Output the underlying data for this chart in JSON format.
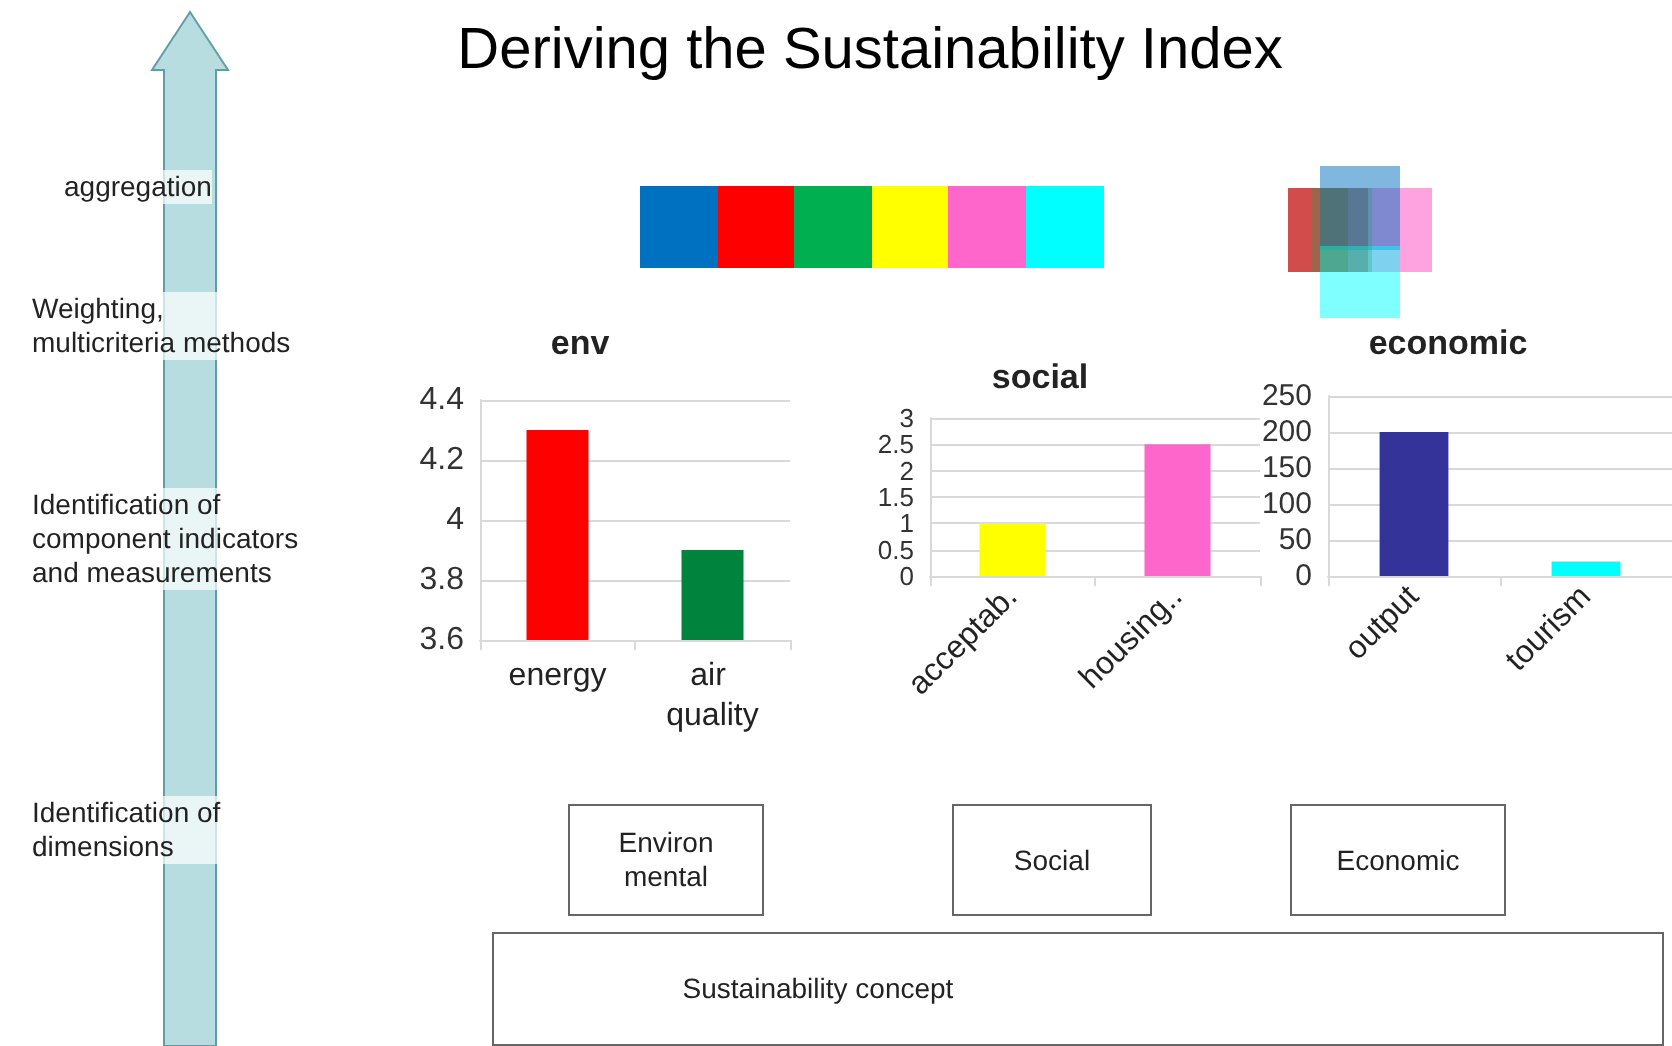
{
  "chart_data": [
    {
      "type": "bar",
      "title": "env",
      "categories": [
        "energy",
        "air quality"
      ],
      "values": [
        4.3,
        3.9
      ],
      "colors": [
        "#ff0000",
        "#00843d"
      ],
      "ylim": [
        3.6,
        4.4
      ],
      "yticks": [
        3.6,
        3.8,
        4,
        4.2,
        4.4
      ],
      "grid": "y"
    },
    {
      "type": "bar",
      "title": "social",
      "categories": [
        "acceptab.",
        "housing.."
      ],
      "values": [
        1,
        2.5
      ],
      "colors": [
        "#ffff00",
        "#ff66cc"
      ],
      "ylim": [
        0,
        3
      ],
      "yticks": [
        0,
        0.5,
        1,
        1.5,
        2,
        2.5,
        3
      ],
      "grid": "y"
    },
    {
      "type": "bar",
      "title": "economic",
      "categories": [
        "output",
        "tourism"
      ],
      "values": [
        200,
        20
      ],
      "colors": [
        "#333399",
        "#00ffff"
      ],
      "ylim": [
        0,
        250
      ],
      "yticks": [
        0,
        50,
        100,
        150,
        200,
        250
      ],
      "grid": "y"
    },
    {
      "type": "other",
      "title": "Deriving the Sustainability Index",
      "annotations": [
        "aggregation",
        "Weighting,\nmulticriteria methods",
        "Identification of\ncomponent indicators\nand measurements",
        "Identification of\ndimensions",
        "Environ\nmental",
        "Social",
        "Economic",
        "Sustainability concept"
      ]
    }
  ]
}
